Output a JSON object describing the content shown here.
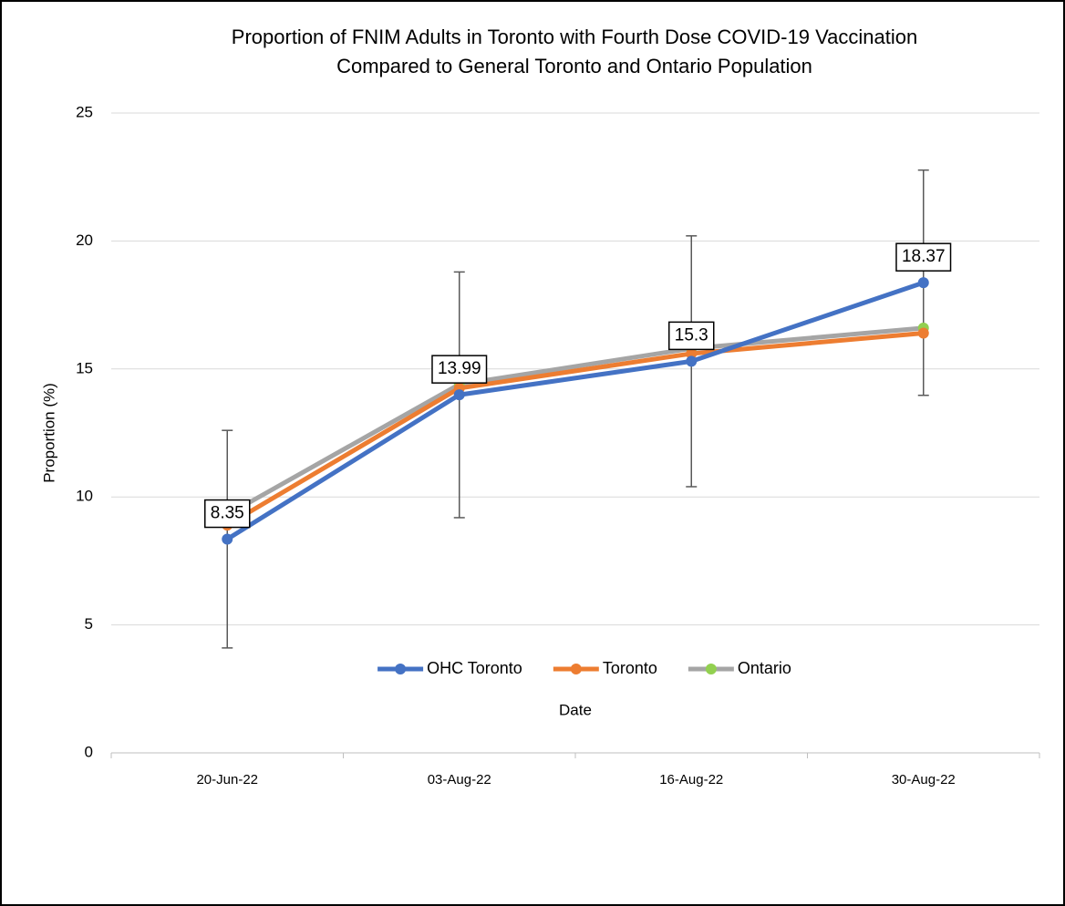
{
  "chart_data": {
    "type": "line",
    "title": [
      "Proportion of FNIM Adults in Toronto with Fourth Dose COVID-19 Vaccination",
      "Compared to General Toronto and Ontario Population"
    ],
    "x_label": "Date",
    "y_label": "Proportion (%)",
    "categories": [
      "20-Jun-22",
      "03-Aug-22",
      "16-Aug-22",
      "30-Aug-22"
    ],
    "series": [
      {
        "name": "OHC Toronto",
        "color": "#4472c4",
        "marker_color": "#4472c4",
        "values": [
          8.35,
          13.99,
          15.3,
          18.37
        ],
        "errors": [
          4.25,
          4.8,
          4.9,
          4.4
        ],
        "data_labels": true
      },
      {
        "name": "Toronto",
        "color": "#ed7d31",
        "marker_color": "#ed7d31",
        "values": [
          8.9,
          14.25,
          15.6,
          16.4
        ]
      },
      {
        "name": "Ontario",
        "color": "#a5a5a5",
        "marker_color": "#92d050",
        "values": [
          9.3,
          14.4,
          15.8,
          16.6
        ]
      }
    ],
    "ylim": [
      0,
      25
    ],
    "yticks": [
      0,
      5,
      10,
      15,
      20,
      25
    ],
    "grid": true,
    "legend": "bottom"
  }
}
